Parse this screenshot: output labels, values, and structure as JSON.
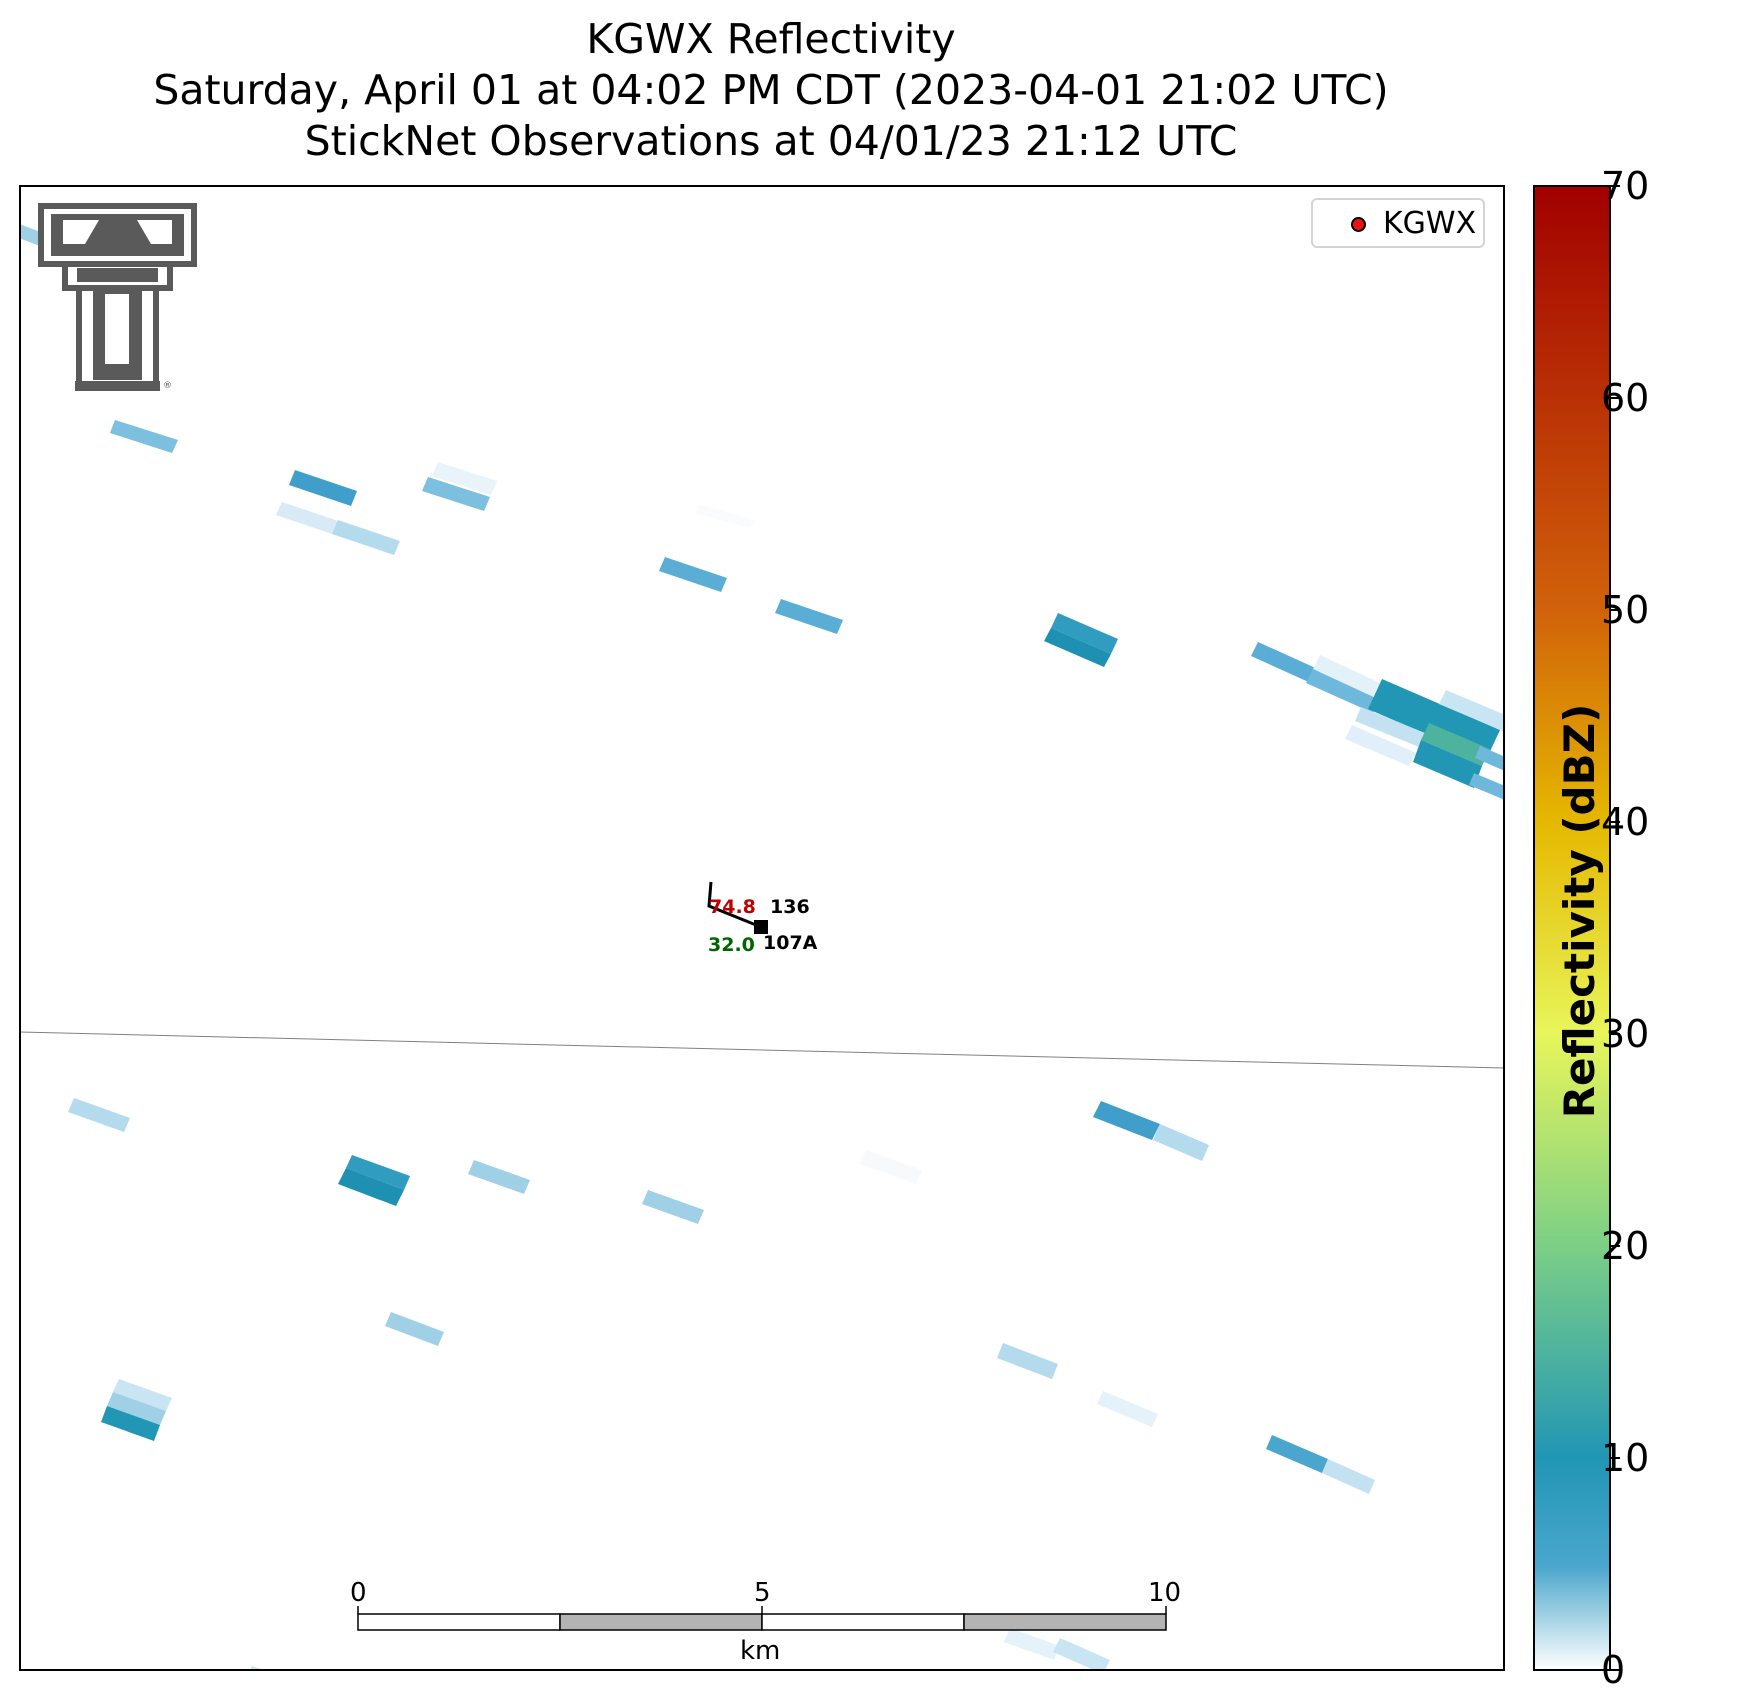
{
  "title": {
    "line1": "KGWX Reflectivity",
    "line2": "Saturday, April 01 at 04:02 PM CDT (2023-04-01 21:02 UTC)",
    "line3": "StickNet Observations at 04/01/23 21:12 UTC"
  },
  "legend": {
    "label": "KGWX",
    "marker_color": "#ee1111"
  },
  "colorbar": {
    "label": "Reflectivity (dBZ)",
    "min": 0,
    "max": 70,
    "ticks": [
      "0",
      "10",
      "20",
      "30",
      "40",
      "50",
      "60",
      "70"
    ],
    "colors": [
      "#ffffff",
      "#4aa6cc",
      "#2196b5",
      "#7ccf86",
      "#e8f55a",
      "#e5b800",
      "#d1620a",
      "#a20000"
    ]
  },
  "station": {
    "id": "107A",
    "temperature": "74.8",
    "dewpoint": "32.0",
    "pressure": "136",
    "temperature_color": "#c00000",
    "dewpoint_color": "#006400"
  },
  "scale_bar": {
    "unit": "km",
    "labels": [
      "0",
      "5",
      "10"
    ]
  },
  "logo": {
    "name": "Texas Tech double T logo",
    "mark": "®"
  },
  "colors": {
    "logo_gray": "#5a5a5a",
    "scale_gray": "#b4b4b4",
    "county_line": "#808080"
  }
}
